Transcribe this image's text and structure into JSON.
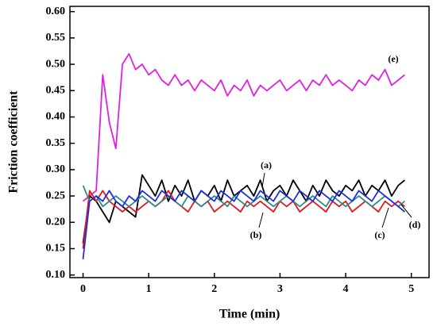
{
  "chart_data": {
    "type": "line",
    "xlabel": "Time (min)",
    "ylabel": "Friction coefficient",
    "x": [
      0,
      0.1,
      0.2,
      0.3,
      0.4,
      0.5,
      0.6,
      0.7,
      0.8,
      0.9,
      1.0,
      1.1,
      1.2,
      1.3,
      1.4,
      1.5,
      1.6,
      1.7,
      1.8,
      1.9,
      2.0,
      2.1,
      2.2,
      2.3,
      2.4,
      2.5,
      2.6,
      2.7,
      2.8,
      2.9,
      3.0,
      3.1,
      3.2,
      3.3,
      3.4,
      3.5,
      3.6,
      3.7,
      3.8,
      3.9,
      4.0,
      4.1,
      4.2,
      4.3,
      4.4,
      4.5,
      4.6,
      4.7,
      4.8,
      4.9
    ],
    "series": [
      {
        "name": "(a)",
        "color": "#000000",
        "values": [
          0.16,
          0.25,
          0.24,
          0.22,
          0.2,
          0.24,
          0.23,
          0.22,
          0.21,
          0.29,
          0.27,
          0.25,
          0.28,
          0.24,
          0.27,
          0.25,
          0.28,
          0.24,
          0.26,
          0.25,
          0.27,
          0.24,
          0.28,
          0.25,
          0.26,
          0.27,
          0.25,
          0.28,
          0.24,
          0.26,
          0.27,
          0.25,
          0.28,
          0.26,
          0.24,
          0.27,
          0.25,
          0.28,
          0.26,
          0.25,
          0.27,
          0.26,
          0.28,
          0.25,
          0.27,
          0.26,
          0.28,
          0.25,
          0.27,
          0.28
        ]
      },
      {
        "name": "(b)",
        "color": "#e8141e",
        "values": [
          0.15,
          0.26,
          0.24,
          0.26,
          0.24,
          0.23,
          0.22,
          0.23,
          0.22,
          0.23,
          0.24,
          0.23,
          0.24,
          0.26,
          0.24,
          0.23,
          0.22,
          0.24,
          0.23,
          0.24,
          0.22,
          0.23,
          0.24,
          0.23,
          0.22,
          0.24,
          0.23,
          0.24,
          0.23,
          0.22,
          0.24,
          0.23,
          0.24,
          0.22,
          0.23,
          0.24,
          0.23,
          0.22,
          0.24,
          0.23,
          0.24,
          0.22,
          0.23,
          0.24,
          0.23,
          0.22,
          0.24,
          0.23,
          0.24,
          0.23
        ]
      },
      {
        "name": "(c)",
        "color": "#2a8c8c",
        "values": [
          0.27,
          0.24,
          0.25,
          0.23,
          0.24,
          0.25,
          0.24,
          0.23,
          0.24,
          0.25,
          0.24,
          0.23,
          0.24,
          0.25,
          0.24,
          0.23,
          0.25,
          0.24,
          0.23,
          0.24,
          0.25,
          0.24,
          0.23,
          0.25,
          0.24,
          0.23,
          0.24,
          0.25,
          0.24,
          0.23,
          0.24,
          0.25,
          0.24,
          0.23,
          0.24,
          0.25,
          0.24,
          0.23,
          0.25,
          0.24,
          0.23,
          0.24,
          0.25,
          0.24,
          0.23,
          0.24,
          0.25,
          0.24,
          0.23,
          0.24
        ]
      },
      {
        "name": "(d)",
        "color": "#1f2fe0",
        "values": [
          0.13,
          0.24,
          0.25,
          0.24,
          0.26,
          0.24,
          0.23,
          0.25,
          0.24,
          0.26,
          0.25,
          0.24,
          0.26,
          0.25,
          0.24,
          0.26,
          0.25,
          0.24,
          0.26,
          0.25,
          0.24,
          0.26,
          0.25,
          0.24,
          0.26,
          0.25,
          0.24,
          0.26,
          0.25,
          0.24,
          0.26,
          0.25,
          0.24,
          0.26,
          0.25,
          0.24,
          0.26,
          0.25,
          0.24,
          0.26,
          0.25,
          0.24,
          0.26,
          0.25,
          0.24,
          0.26,
          0.25,
          0.24,
          0.23,
          0.22
        ]
      },
      {
        "name": "(e)",
        "color": "#e020e0",
        "values": [
          0.24,
          0.25,
          0.26,
          0.48,
          0.39,
          0.34,
          0.5,
          0.52,
          0.49,
          0.5,
          0.48,
          0.49,
          0.47,
          0.46,
          0.48,
          0.46,
          0.47,
          0.45,
          0.47,
          0.46,
          0.45,
          0.47,
          0.44,
          0.46,
          0.45,
          0.47,
          0.44,
          0.46,
          0.45,
          0.46,
          0.47,
          0.45,
          0.46,
          0.47,
          0.45,
          0.47,
          0.46,
          0.48,
          0.46,
          0.47,
          0.46,
          0.45,
          0.47,
          0.46,
          0.48,
          0.47,
          0.49,
          0.46,
          0.47,
          0.48
        ]
      }
    ],
    "xlim": [
      -0.2,
      5.27
    ],
    "ylim": [
      0.095,
      0.61
    ],
    "xticks": [
      0,
      1,
      2,
      3,
      4,
      5
    ],
    "yticks": [
      {
        "value": 0.1,
        "label": "0.10"
      },
      {
        "value": 0.15,
        "label": "0.15"
      },
      {
        "value": 0.2,
        "label": "0.20"
      },
      {
        "value": 0.25,
        "label": "0.25"
      },
      {
        "value": 0.3,
        "label": "0.30"
      },
      {
        "value": 0.35,
        "label": "0.35"
      },
      {
        "value": 0.4,
        "label": "0.40"
      },
      {
        "value": 0.45,
        "label": "0.45"
      },
      {
        "value": 0.5,
        "label": "0.50"
      },
      {
        "value": 0.55,
        "label": "0.55"
      },
      {
        "value": 0.6,
        "label": "0.60"
      }
    ]
  }
}
